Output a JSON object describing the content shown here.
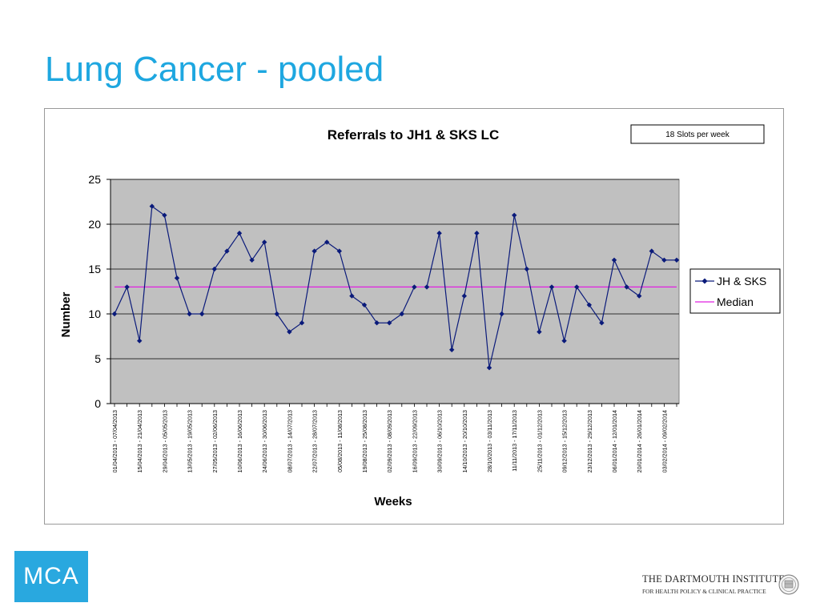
{
  "slide": {
    "title": "Lung Cancer - pooled"
  },
  "footer": {
    "mca_logo": "MCA",
    "dartmouth_line1": "THE DARTMOUTH INSTITUTE",
    "dartmouth_line2": "FOR HEALTH POLICY & CLINICAL PRACTICE"
  },
  "colors": {
    "title": "#1ea7e0",
    "plot_area": "#c0c0c0",
    "series_line": "#0a1a7a",
    "median_line": "#e020e0",
    "mca_logo_bg": "#29a8df"
  },
  "chart_data": {
    "type": "line",
    "title": "Referrals to JH1 & SKS LC",
    "xlabel": "Weeks",
    "ylabel": "Number",
    "ylim": [
      0,
      25
    ],
    "yticks": [
      0,
      5,
      10,
      15,
      20,
      25
    ],
    "grid": "horizontal",
    "legend_position": "right",
    "annotation": "18 Slots per week",
    "x_tick_labels": [
      "01/04/2013 - 07/04/2013",
      "15/04/2013 - 21/04/2013",
      "29/04/2013 - 05/05/2013",
      "13/05/2013 - 19/05/2013",
      "27/05/2013 - 02/06/2013",
      "10/06/2013 - 16/06/2013",
      "24/06/2013 - 30/06/2013",
      "08/07/2013 - 14/07/2013",
      "22/07/2013 - 28/07/2013",
      "05/08/2013 - 11/08/2013",
      "19/08/2013 - 25/08/2013",
      "02/09/2013 - 08/09/2013",
      "16/09/2013 - 22/09/2013",
      "30/09/2013 - 06/10/2013",
      "14/10/2013 - 20/10/2013",
      "28/10/2013 - 03/11/2013",
      "11/11/2013 - 17/11/2013",
      "25/11/2013 - 01/12/2013",
      "09/12/2013 - 15/12/2013",
      "23/12/2013 - 29/12/2013",
      "06/01/2014 - 12/01/2014",
      "20/01/2014 - 26/01/2014",
      "03/02/2014 - 09/02/2014"
    ],
    "x_tick_every": 2,
    "series": [
      {
        "name": "JH & SKS",
        "values": [
          10,
          13,
          7,
          22,
          21,
          14,
          10,
          10,
          15,
          17,
          19,
          16,
          18,
          10,
          8,
          9,
          17,
          18,
          17,
          12,
          11,
          9,
          9,
          10,
          13,
          13,
          19,
          6,
          12,
          19,
          4,
          10,
          21,
          15,
          8,
          13,
          7,
          13,
          11,
          9,
          16,
          13,
          12,
          17,
          16,
          16
        ],
        "gaps_after": [
          24
        ]
      },
      {
        "name": "Median",
        "value": 13
      }
    ]
  }
}
